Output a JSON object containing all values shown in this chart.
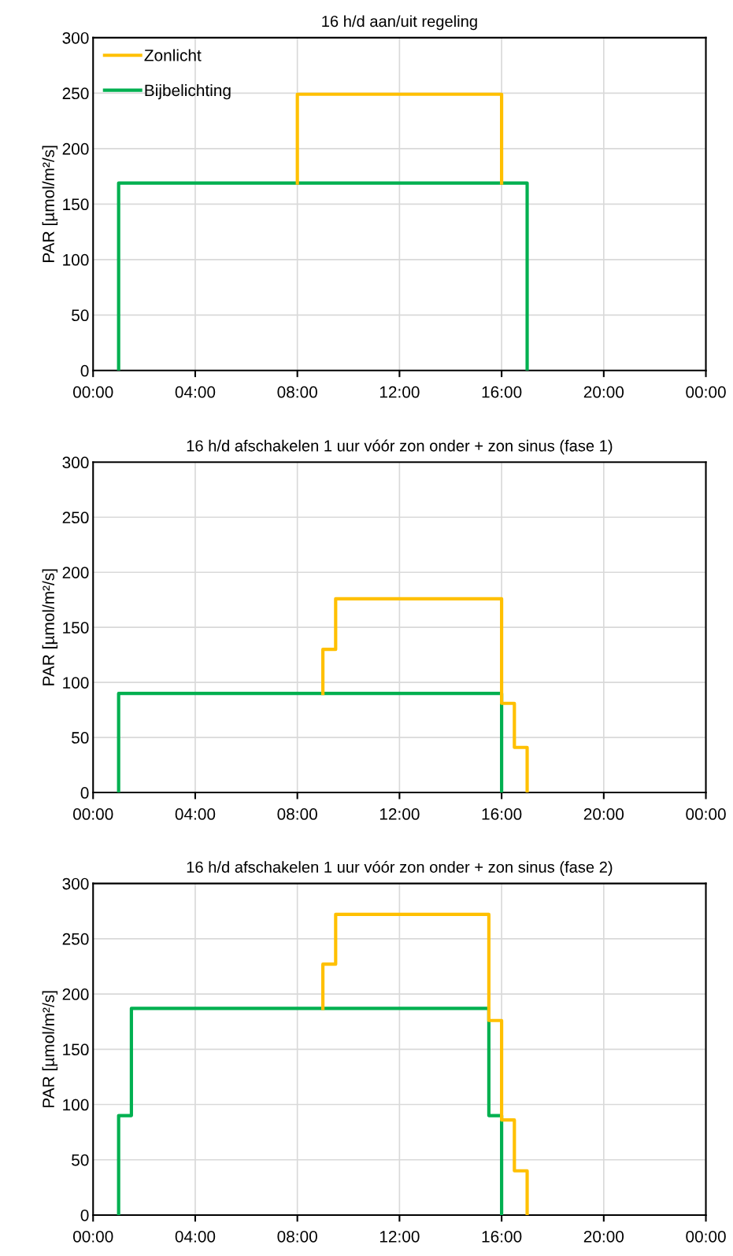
{
  "chart_data": [
    {
      "type": "line",
      "title": "16 h/d aan/uit regeling",
      "ylabel": "PAR [µmol/m²/s]",
      "xlim": [
        0,
        24
      ],
      "ylim": [
        0,
        300
      ],
      "xticks": [
        {
          "value": 0,
          "label": "00:00"
        },
        {
          "value": 4,
          "label": "04:00"
        },
        {
          "value": 8,
          "label": "08:00"
        },
        {
          "value": 12,
          "label": "12:00"
        },
        {
          "value": 16,
          "label": "16:00"
        },
        {
          "value": 20,
          "label": "20:00"
        },
        {
          "value": 24,
          "label": "00:00"
        }
      ],
      "yticks": [
        0,
        50,
        100,
        150,
        200,
        250,
        300
      ],
      "grid": true,
      "legend": "top left",
      "line_style": "solid",
      "marker": "none",
      "series": [
        {
          "name": "Zonlicht",
          "color": "#ffc000",
          "x": [
            8,
            8,
            16,
            16
          ],
          "values": [
            169,
            249,
            249,
            169
          ]
        },
        {
          "name": "Bijbelichting",
          "color": "#00b050",
          "x": [
            1,
            1,
            17,
            17
          ],
          "values": [
            0,
            169,
            169,
            0
          ]
        }
      ]
    },
    {
      "type": "line",
      "title": "16 h/d afschakelen 1 uur vóór zon onder + zon sinus (fase 1)",
      "ylabel": "PAR [µmol/m²/s]",
      "xlim": [
        0,
        24
      ],
      "ylim": [
        0,
        300
      ],
      "xticks": [
        {
          "value": 0,
          "label": "00:00"
        },
        {
          "value": 4,
          "label": "04:00"
        },
        {
          "value": 8,
          "label": "08:00"
        },
        {
          "value": 12,
          "label": "12:00"
        },
        {
          "value": 16,
          "label": "16:00"
        },
        {
          "value": 20,
          "label": "20:00"
        },
        {
          "value": 24,
          "label": "00:00"
        }
      ],
      "yticks": [
        0,
        50,
        100,
        150,
        200,
        250,
        300
      ],
      "grid": true,
      "line_style": "solid",
      "marker": "none",
      "series": [
        {
          "color": "#ffc000",
          "x": [
            9,
            9,
            9.5,
            9.5,
            16,
            16,
            16.5,
            16.5,
            17,
            17
          ],
          "values": [
            90,
            130,
            130,
            176,
            176,
            81,
            81,
            41,
            41,
            0
          ]
        },
        {
          "color": "#00b050",
          "x": [
            1,
            1,
            16,
            16
          ],
          "values": [
            0,
            90,
            90,
            0
          ]
        }
      ]
    },
    {
      "type": "line",
      "title": "16 h/d afschakelen 1 uur vóór zon onder + zon sinus (fase 2)",
      "ylabel": "PAR [µmol/m²/s]",
      "xlim": [
        0,
        24
      ],
      "ylim": [
        0,
        300
      ],
      "xticks": [
        {
          "value": 0,
          "label": "00:00"
        },
        {
          "value": 4,
          "label": "04:00"
        },
        {
          "value": 8,
          "label": "08:00"
        },
        {
          "value": 12,
          "label": "12:00"
        },
        {
          "value": 16,
          "label": "16:00"
        },
        {
          "value": 20,
          "label": "20:00"
        },
        {
          "value": 24,
          "label": "00:00"
        }
      ],
      "yticks": [
        0,
        50,
        100,
        150,
        200,
        250,
        300
      ],
      "grid": true,
      "line_style": "solid",
      "marker": "none",
      "series": [
        {
          "color": "#ffc000",
          "x": [
            9,
            9,
            9.5,
            9.5,
            15.5,
            15.5,
            16,
            16,
            16.5,
            16.5,
            17,
            17
          ],
          "values": [
            187,
            227,
            227,
            272,
            272,
            176,
            176,
            86,
            86,
            40,
            40,
            0
          ]
        },
        {
          "color": "#00b050",
          "x": [
            1,
            1,
            1.5,
            1.5,
            15.5,
            15.5,
            16,
            16
          ],
          "values": [
            0,
            90,
            90,
            187,
            187,
            90,
            90,
            0
          ]
        }
      ]
    }
  ]
}
